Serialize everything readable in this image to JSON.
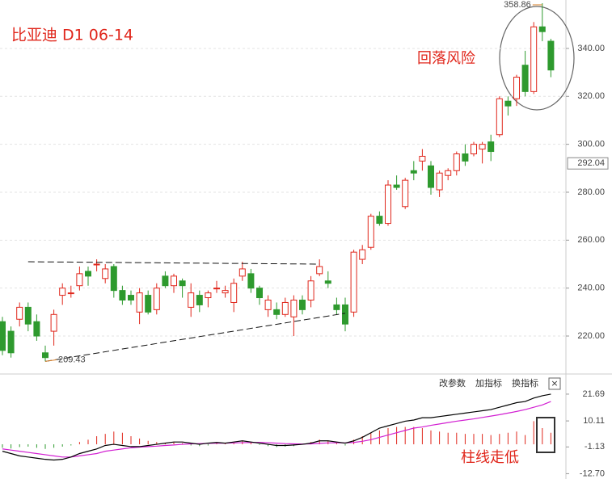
{
  "chart_data": [
    {
      "type": "candlestick",
      "title": "比亚迪  D1  06-14",
      "open": [
        226,
        222,
        227,
        232,
        226,
        213,
        222,
        237,
        238,
        241,
        247,
        250,
        244,
        249,
        239,
        237,
        230,
        237,
        231,
        245,
        241,
        243,
        232,
        237,
        236,
        240,
        238,
        234,
        245,
        246,
        240,
        231,
        231,
        229,
        228,
        235,
        235,
        246,
        243,
        233,
        233,
        230,
        252,
        257,
        270,
        267,
        283,
        274,
        289,
        293,
        291,
        281,
        287,
        289,
        296,
        296,
        298,
        301,
        304,
        318,
        319,
        333,
        322,
        349,
        343
      ],
      "high": [
        228,
        224,
        234,
        234,
        229,
        216,
        231,
        242,
        241,
        249,
        249,
        252,
        250,
        250,
        241,
        239,
        240,
        239,
        242,
        247,
        246,
        244,
        242,
        239,
        239,
        243,
        241,
        244,
        251,
        248,
        241,
        237,
        234,
        236,
        237,
        237,
        245,
        252,
        247,
        236,
        236,
        256,
        258,
        271,
        272,
        285,
        287,
        286,
        293,
        298,
        293,
        289,
        290,
        297,
        300,
        301,
        301,
        304,
        320,
        320,
        329,
        339,
        351,
        358.86,
        344
      ],
      "low": [
        212,
        211,
        224,
        222,
        218,
        209.43,
        216,
        233,
        236,
        239,
        241,
        247,
        242,
        236,
        233,
        233,
        225,
        229,
        229,
        240,
        238,
        236,
        228,
        230,
        232,
        238,
        236,
        230,
        243,
        238,
        233,
        228,
        227,
        228,
        220,
        229,
        232,
        245,
        240,
        229,
        222,
        228,
        250,
        256,
        266,
        266,
        281,
        273,
        285,
        289,
        279,
        278,
        285,
        287,
        291,
        295,
        292,
        293,
        303,
        312,
        316,
        320,
        321,
        343,
        328
      ],
      "close": [
        214,
        213,
        232,
        225,
        220,
        211,
        229,
        240,
        238,
        246,
        245,
        250,
        248,
        239,
        235,
        235,
        238,
        230,
        240,
        241,
        245,
        241,
        238,
        233,
        238,
        240,
        239,
        242,
        248,
        240,
        236,
        235,
        229,
        234,
        235,
        231,
        243,
        249,
        242,
        231,
        225,
        255,
        256,
        270,
        267,
        283,
        282,
        285,
        288,
        295,
        282,
        288,
        289,
        296,
        293,
        300,
        300,
        297,
        319,
        316,
        328,
        322,
        349,
        347,
        331
      ],
      "ylim": [
        204.5,
        360.2
      ],
      "yticks": [
        {
          "value": 220,
          "label": "220.00"
        },
        {
          "value": 240,
          "label": "240.00"
        },
        {
          "value": 260,
          "label": "260.00"
        },
        {
          "value": 280,
          "label": "280.00"
        },
        {
          "value": 300,
          "label": "300.00"
        },
        {
          "value": 320,
          "label": "320.00"
        },
        {
          "value": 340,
          "label": "340.00"
        }
      ],
      "grid": true,
      "up_color": "#e0261b",
      "down_color": "#2e9a2e",
      "high_label": 358.86,
      "low_label": 209.43,
      "price_label": 292.04,
      "annotation": "回落风险",
      "trendlines": [
        {
          "from": [
            3,
            251
          ],
          "to": [
            37,
            250
          ]
        },
        {
          "from": [
            5,
            209.43
          ],
          "to": [
            40,
            229.5
          ]
        }
      ]
    },
    {
      "type": "macd",
      "hist": [
        -1.5,
        -1.8,
        -1.2,
        -1,
        -1.5,
        -2,
        -1.5,
        -1,
        -0.5,
        1,
        2,
        3.5,
        4.5,
        5.5,
        5,
        3.5,
        2.5,
        1.5,
        1,
        0.5,
        0.8,
        0.5,
        -0.5,
        -0.8,
        -0.5,
        0.5,
        0.3,
        0.8,
        1.5,
        0.8,
        -0.3,
        -0.8,
        -1.2,
        -1,
        -0.8,
        0.2,
        1,
        2,
        1.5,
        0.5,
        -0.5,
        2,
        3.5,
        5,
        6,
        7,
        7.5,
        7.5,
        7.5,
        7,
        6,
        5.5,
        5,
        5,
        4.5,
        4.5,
        4.5,
        4,
        4.5,
        5,
        5.5,
        4,
        10,
        7,
        5
      ],
      "dif": [
        -3,
        -4,
        -5,
        -5.5,
        -6,
        -6.5,
        -6.8,
        -6.5,
        -5.5,
        -4,
        -3,
        -2,
        -0.5,
        0,
        -0.5,
        -1,
        -1,
        -0.5,
        0,
        0.5,
        1,
        1,
        0.5,
        0,
        0.5,
        0.8,
        0.5,
        1,
        1.5,
        1,
        0.5,
        0,
        -0.5,
        -0.5,
        -0.3,
        0,
        0.5,
        1.5,
        1.5,
        1,
        0.5,
        1.5,
        3,
        5,
        7,
        8,
        9,
        10,
        10.5,
        11.5,
        11.5,
        12,
        12.5,
        13,
        13.5,
        14,
        14.5,
        15,
        16,
        17,
        18,
        18.5,
        20,
        21,
        21.69
      ],
      "dea": [
        -2,
        -2.5,
        -3,
        -3.5,
        -4,
        -4.5,
        -5,
        -5.5,
        -5.5,
        -5,
        -4.5,
        -4,
        -3,
        -2.5,
        -2,
        -1.5,
        -1.2,
        -1,
        -0.8,
        -0.5,
        -0.3,
        0,
        0.2,
        0.3,
        0.4,
        0.5,
        0.5,
        0.6,
        0.7,
        0.8,
        0.8,
        0.7,
        0.5,
        0.3,
        0.2,
        0.1,
        0.2,
        0.4,
        0.6,
        0.7,
        0.6,
        0.8,
        1.3,
        2,
        3,
        4,
        5,
        6,
        7,
        7.5,
        8.2,
        8.8,
        9.4,
        10,
        10.5,
        11,
        11.6,
        12.2,
        12.8,
        13.5,
        14.2,
        15,
        16,
        17,
        18.5
      ],
      "ylim": [
        -15,
        29.7
      ],
      "yticks": [
        {
          "value": -12.7,
          "label": "-12.70"
        },
        -1.13,
        10.11,
        21.69
      ],
      "grid": false,
      "up_color": "#e0261b",
      "down_color": "#2e9a2e",
      "dif_color": "#000000",
      "dea_color": "#d21fd2",
      "annotation": "柱线走低",
      "buttons": [
        "改参数",
        "加指标",
        "换指标"
      ],
      "close_button": "×"
    }
  ]
}
